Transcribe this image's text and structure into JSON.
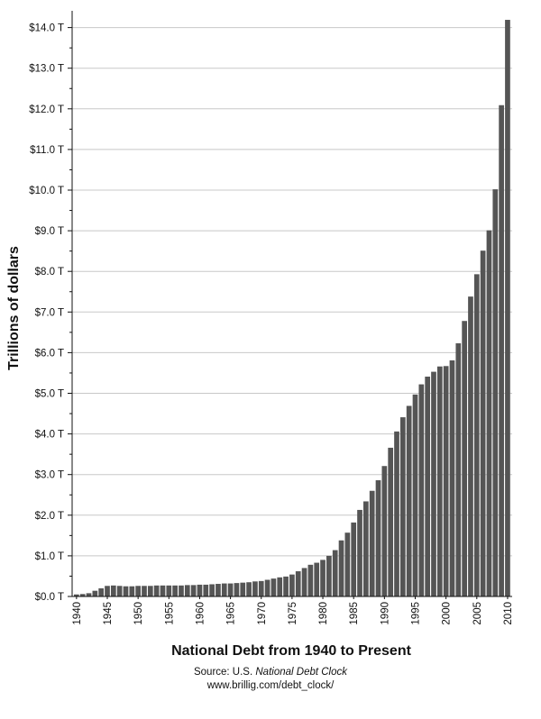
{
  "chart_data": {
    "type": "bar",
    "title": "",
    "xlabel": "National Debt from 1940 to Present",
    "ylabel": "Trillions of dollars",
    "ylim": [
      0,
      14.4
    ],
    "y_ticks": [
      0,
      1,
      2,
      3,
      4,
      5,
      6,
      7,
      8,
      9,
      10,
      11,
      12,
      13,
      14
    ],
    "y_tick_labels": [
      "$0.0 T",
      "$1.0 T",
      "$2.0 T",
      "$3.0 T",
      "$4.0 T",
      "$5.0 T",
      "$6.0 T",
      "$7.0 T",
      "$8.0 T",
      "$9.0 T",
      "$10.0 T",
      "$11.0 T",
      "$12.0 T",
      "$13.0 T",
      "$14.0 T"
    ],
    "x_tick_labels": [
      "1940",
      "1945",
      "1950",
      "1955",
      "1960",
      "1965",
      "1970",
      "1975",
      "1980",
      "1985",
      "1990",
      "1995",
      "2000",
      "2005",
      "2010"
    ],
    "grid": "horizontal",
    "bar_color": "#555555",
    "categories": [
      1940,
      1941,
      1942,
      1943,
      1944,
      1945,
      1946,
      1947,
      1948,
      1949,
      1950,
      1951,
      1952,
      1953,
      1954,
      1955,
      1956,
      1957,
      1958,
      1959,
      1960,
      1961,
      1962,
      1963,
      1964,
      1965,
      1966,
      1967,
      1968,
      1969,
      1970,
      1971,
      1972,
      1973,
      1974,
      1975,
      1976,
      1977,
      1978,
      1979,
      1980,
      1981,
      1982,
      1983,
      1984,
      1985,
      1986,
      1987,
      1988,
      1989,
      1990,
      1991,
      1992,
      1993,
      1994,
      1995,
      1996,
      1997,
      1998,
      1999,
      2000,
      2001,
      2002,
      2003,
      2004,
      2005,
      2006,
      2007,
      2008,
      2009,
      2010
    ],
    "values": [
      0.05,
      0.06,
      0.08,
      0.14,
      0.2,
      0.26,
      0.27,
      0.26,
      0.25,
      0.25,
      0.26,
      0.26,
      0.26,
      0.27,
      0.27,
      0.27,
      0.27,
      0.27,
      0.28,
      0.28,
      0.29,
      0.29,
      0.3,
      0.31,
      0.32,
      0.32,
      0.33,
      0.34,
      0.35,
      0.37,
      0.38,
      0.41,
      0.44,
      0.47,
      0.49,
      0.54,
      0.62,
      0.7,
      0.78,
      0.83,
      0.9,
      1.0,
      1.14,
      1.38,
      1.57,
      1.82,
      2.13,
      2.34,
      2.6,
      2.86,
      3.21,
      3.66,
      4.06,
      4.41,
      4.69,
      4.97,
      5.22,
      5.41,
      5.53,
      5.66,
      5.67,
      5.81,
      6.23,
      6.78,
      7.38,
      7.93,
      8.51,
      9.01,
      10.02,
      12.09,
      14.19
    ]
  },
  "source": {
    "line1_prefix": "Source: U.S. ",
    "line1_italic": "National Debt Clock",
    "line2": "www.brillig.com/debt_clock/"
  }
}
